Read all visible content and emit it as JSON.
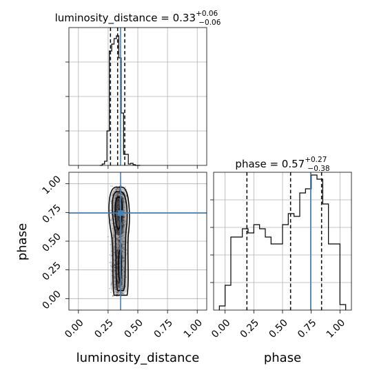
{
  "chart_data": [
    {
      "type": "histogram",
      "panel": "top-left",
      "title": {
        "base": "luminosity_distance = 0.33",
        "sup": "+0.06",
        "sub": "−0.06"
      },
      "xlim": [
        -0.08,
        1.08
      ],
      "ylim": [
        0,
        1.0
      ],
      "y_ticklabels_shown": false,
      "bins": {
        "edges": [
          0.18,
          0.2,
          0.22,
          0.24,
          0.26,
          0.28,
          0.3,
          0.32,
          0.34,
          0.36,
          0.38,
          0.4,
          0.42,
          0.44,
          0.46,
          0.48,
          0.5,
          0.52
        ],
        "values": [
          0,
          0.01,
          0.03,
          0.25,
          0.83,
          0.88,
          0.92,
          0.94,
          0.78,
          0.38,
          0.08,
          0.08,
          0.01,
          0.015,
          0.005,
          0.0,
          0.0
        ]
      },
      "quantile_lines": [
        0.27,
        0.33,
        0.39
      ],
      "truth": 0.355
    },
    {
      "type": "scatter",
      "panel": "bottom-left",
      "xlabel": "luminosity_distance",
      "ylabel": "phase",
      "xlim": [
        -0.08,
        1.08
      ],
      "ylim": [
        -0.1,
        1.1
      ],
      "xticks": [
        "0.00",
        "0.25",
        "0.50",
        "0.75",
        "1.00"
      ],
      "yticks": [
        "0.00",
        "0.25",
        "0.50",
        "0.75",
        "1.00"
      ],
      "density": {
        "x_center": 0.34,
        "x_spread": 0.05,
        "y_range": [
          0.02,
          0.98
        ]
      },
      "truth": {
        "x": 0.355,
        "y": 0.745
      }
    },
    {
      "type": "histogram",
      "panel": "bottom-right",
      "title": {
        "base": "phase = 0.57",
        "sup": "+0.27",
        "sub": "−0.38"
      },
      "xlabel": "phase",
      "xlim": [
        -0.1,
        1.1
      ],
      "ylim": [
        0,
        1.0
      ],
      "xticks": [
        "0.00",
        "0.25",
        "0.50",
        "0.75",
        "1.00"
      ],
      "y_ticklabels_shown": false,
      "bins": {
        "edges": [
          -0.05,
          0.0,
          0.05,
          0.1,
          0.15,
          0.2,
          0.25,
          0.3,
          0.35,
          0.4,
          0.45,
          0.5,
          0.55,
          0.6,
          0.65,
          0.7,
          0.75,
          0.8,
          0.85,
          0.9,
          0.95,
          1.0,
          1.05
        ],
        "values": [
          0.03,
          0.18,
          0.53,
          0.53,
          0.59,
          0.56,
          0.62,
          0.59,
          0.53,
          0.48,
          0.48,
          0.62,
          0.7,
          0.68,
          0.85,
          0.88,
          0.98,
          0.95,
          0.77,
          0.48,
          0.48,
          0.04
        ]
      },
      "quantile_lines": [
        0.19,
        0.57,
        0.84
      ],
      "truth": 0.745
    }
  ]
}
